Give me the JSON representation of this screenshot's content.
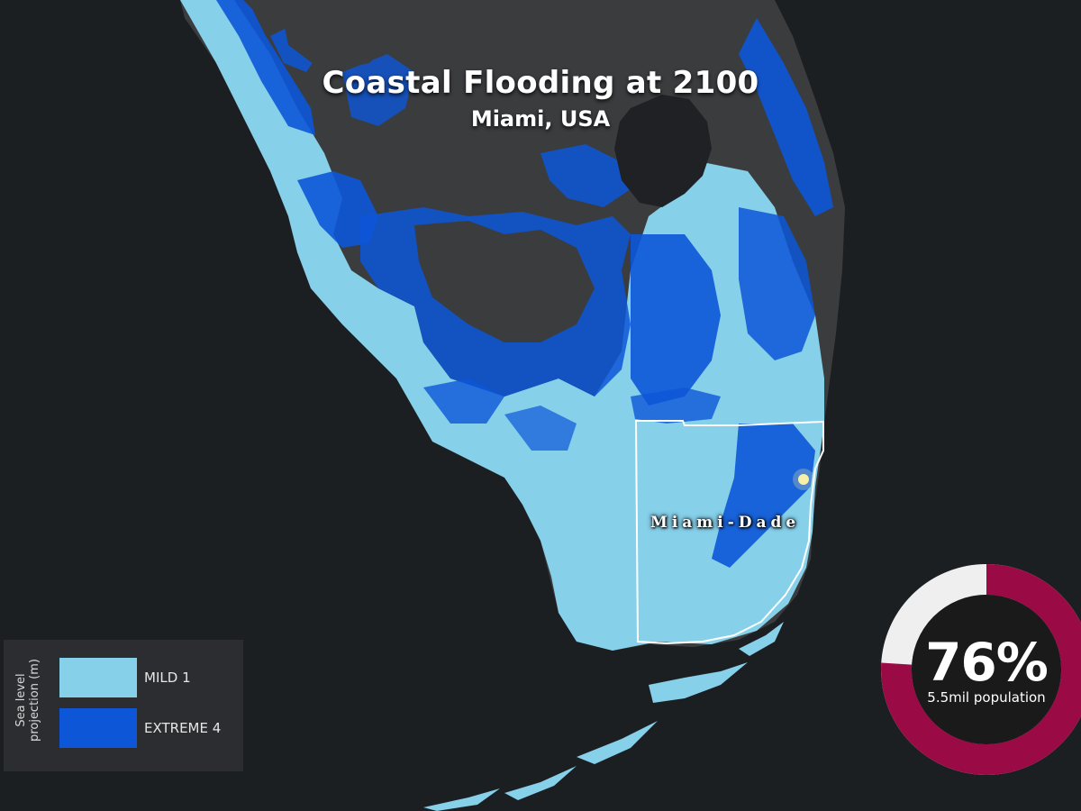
{
  "map": {
    "title": "Coastal Flooding at 2100",
    "subtitle": "Miami, USA",
    "county_label": "Miami-Dade",
    "colors": {
      "ocean": "#1c1f22",
      "land": "#3b3c3e",
      "lake": "#1f2124",
      "mild": "#86d0ea",
      "extreme": "#0d56d8",
      "boundary": "#ffffff"
    }
  },
  "legend": {
    "axis_label": "Sea level projection (m)",
    "items": [
      {
        "label": "MILD",
        "value": "1",
        "color": "#86d0ea"
      },
      {
        "label": "EXTREME",
        "value": "4",
        "color": "#0d56d8"
      }
    ]
  },
  "stat": {
    "percent_text": "76%",
    "percent_value": 76,
    "population_text": "5.5mil population",
    "ring_color": "#9a0b45",
    "ring_remainder_color": "#efefef",
    "center_color": "#1a1a1a"
  }
}
